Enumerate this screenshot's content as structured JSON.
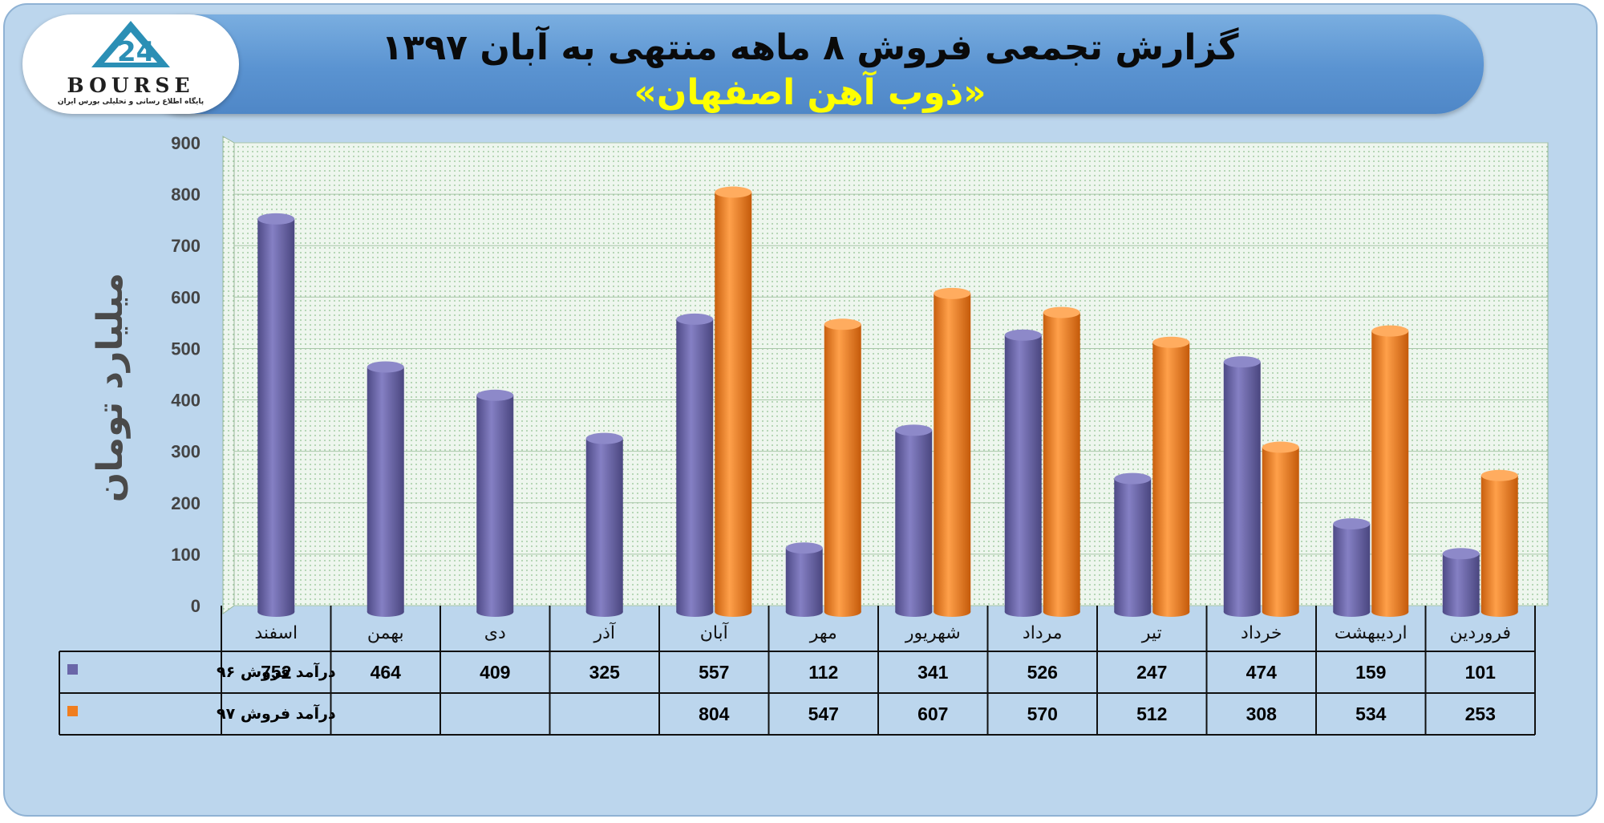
{
  "header": {
    "title": "گزارش تجمعی فروش ۸ ماهه منتهی به آبان ۱۳۹۷",
    "subtitle": "«ذوب آهن اصفهان»"
  },
  "logo": {
    "word": "BOURSE",
    "tagline": "پایگاه اطلاع رسانی و تحلیلی بورس ایران"
  },
  "colors": {
    "series1": "#6a66a8",
    "series2": "#f07d1e",
    "background": "#bcd6ed",
    "plot": "#e6f1e6"
  },
  "chart_data": {
    "type": "bar",
    "ylabel": "میلیارد تومان",
    "ylim": [
      0,
      900
    ],
    "yticks": [
      0,
      100,
      200,
      300,
      400,
      500,
      600,
      700,
      800,
      900
    ],
    "grid": true,
    "categories": [
      "فروردین",
      "اردیبهشت",
      "خرداد",
      "تیر",
      "مرداد",
      "شهریور",
      "مهر",
      "آبان",
      "آذر",
      "دی",
      "بهمن",
      "اسفند"
    ],
    "series": [
      {
        "name": "درآمد فروش ۹۶",
        "values": [
          101,
          159,
          474,
          247,
          526,
          341,
          112,
          557,
          325,
          409,
          464,
          752
        ]
      },
      {
        "name": "درآمد فروش ۹۷",
        "values": [
          253,
          534,
          308,
          512,
          570,
          607,
          547,
          804,
          null,
          null,
          null,
          null
        ]
      }
    ],
    "legend": "data-table"
  }
}
